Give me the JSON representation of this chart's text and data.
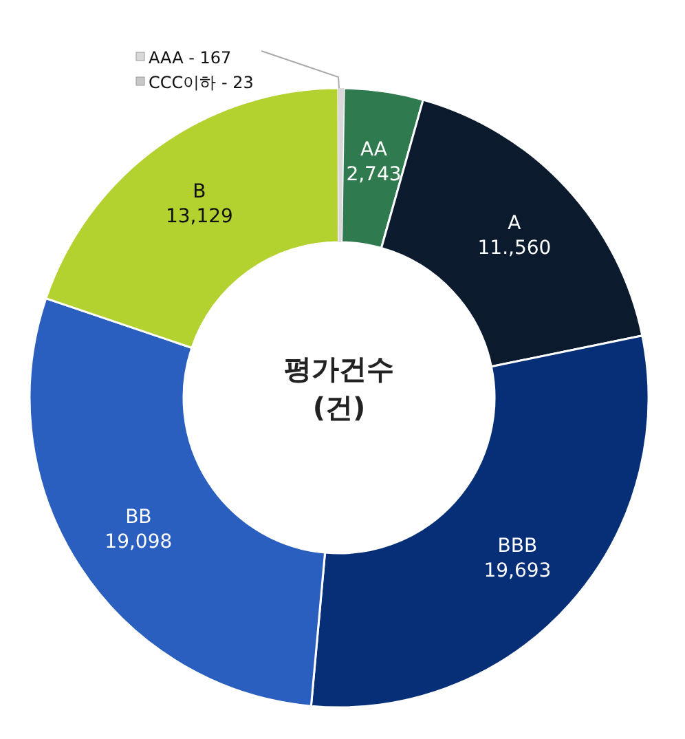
{
  "chart_data": {
    "type": "donut",
    "title": "평가건수\n(건)",
    "categories": [
      "AAA",
      "AA",
      "A",
      "BBB",
      "BB",
      "B",
      "CCC이하"
    ],
    "values": [
      167,
      2743,
      11560,
      19693,
      19098,
      13129,
      23
    ],
    "value_labels": [
      "167",
      "2,743",
      "11.,560",
      "19,693",
      "19,098",
      "13,129",
      "23"
    ],
    "colors": [
      "#d9d9d9",
      "#2f7a4e",
      "#0b1a2d",
      "#062f78",
      "#2a5fbf",
      "#b3d12f",
      "#c8c8c8"
    ],
    "legend": "top left"
  }
}
